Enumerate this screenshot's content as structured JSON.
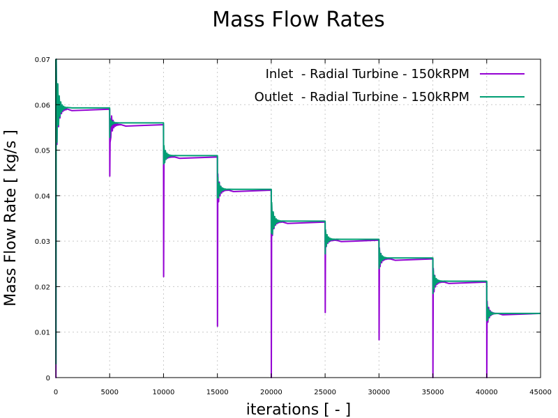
{
  "chart_data": {
    "type": "line",
    "title": "Mass Flow Rates",
    "xlabel": "iterations [ - ]",
    "ylabel": "Mass Flow Rate [ kg/s ]",
    "xlim": [
      0,
      45000
    ],
    "ylim": [
      0,
      0.07
    ],
    "grid": true,
    "legend_position": "top-right",
    "x_ticks": [
      "0",
      "5000",
      "10000",
      "15000",
      "20000",
      "25000",
      "30000",
      "35000",
      "40000",
      "45000"
    ],
    "x_tick_values": [
      0,
      5000,
      10000,
      15000,
      20000,
      25000,
      30000,
      35000,
      40000,
      45000
    ],
    "y_ticks": [
      "0",
      "0.01",
      "0.02",
      "0.03",
      "0.04",
      "0.05",
      "0.06",
      "0.07"
    ],
    "y_tick_values": [
      0,
      0.01,
      0.02,
      0.03,
      0.04,
      0.05,
      0.06,
      0.07
    ],
    "step_iterations": [
      0,
      5000,
      10000,
      15000,
      20000,
      25000,
      30000,
      35000,
      40000
    ],
    "series": [
      {
        "name": "Inlet  - Radial Turbine - 150kRPM",
        "color": "#9400d3",
        "plateaus": [
          0.059,
          0.0556,
          0.0485,
          0.0412,
          0.0342,
          0.0302,
          0.0261,
          0.021,
          0.0141
        ],
        "drop_minima": [
          0.0,
          0.0443,
          0.0222,
          0.0113,
          0.0,
          0.0143,
          0.0083,
          0.0,
          0.0
        ],
        "first_overshoot": [
          0.07,
          0.0517,
          0.0499,
          0.0448,
          0.0384,
          0.0322,
          0.0285,
          0.024,
          0.0168
        ]
      },
      {
        "name": "Outlet  - Radial Turbine - 150kRPM",
        "color": "#009e73",
        "plateaus": [
          0.0593,
          0.056,
          0.0488,
          0.0414,
          0.0344,
          0.0304,
          0.0263,
          0.0212,
          0.0141
        ],
        "drop_minima": [
          0.003,
          0.0528,
          0.047,
          0.0395,
          0.0318,
          0.0272,
          0.024,
          0.0185,
          0.0125
        ],
        "first_overshoot": [
          0.07,
          0.057,
          0.051,
          0.044,
          0.0385,
          0.0325,
          0.0282,
          0.0235,
          0.016
        ]
      }
    ]
  }
}
